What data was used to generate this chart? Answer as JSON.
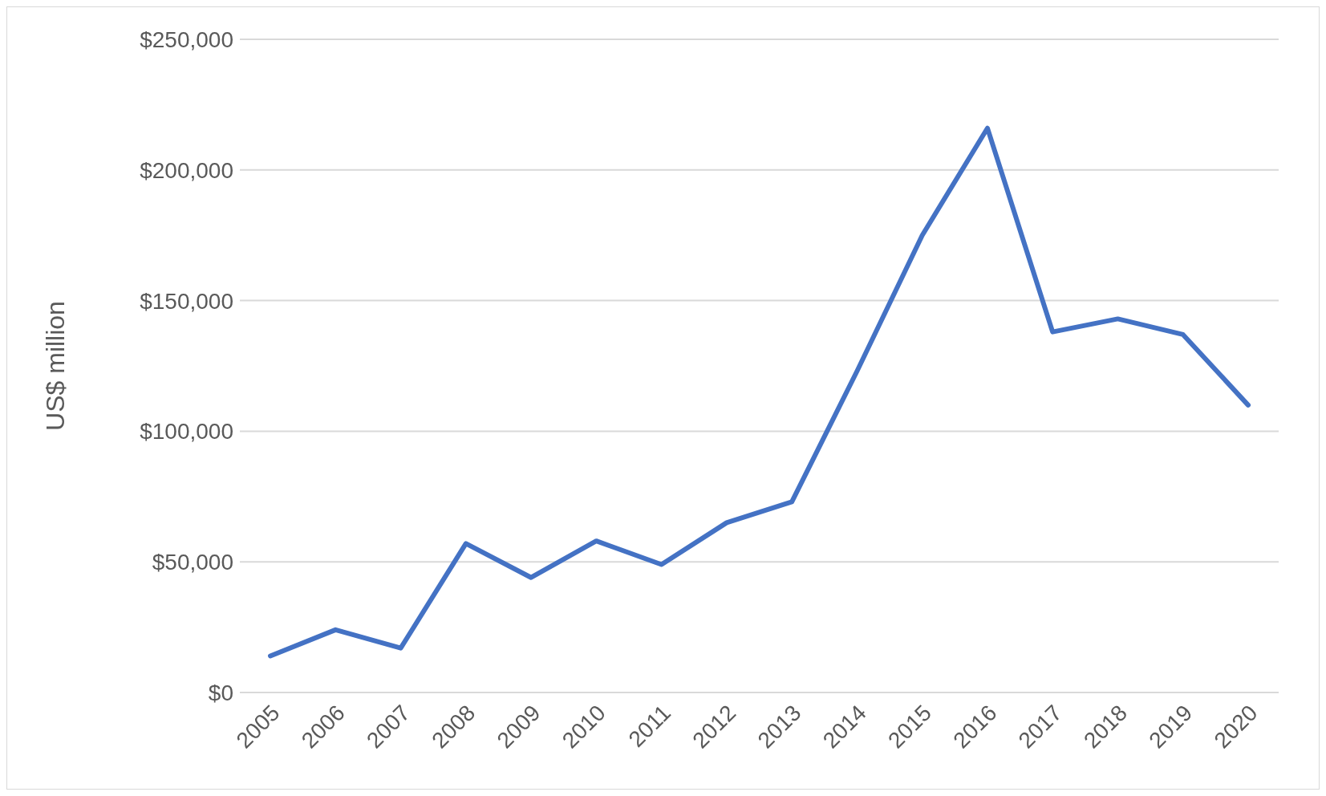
{
  "chart_data": {
    "type": "line",
    "ylabel": "US$ million",
    "categories": [
      "2005",
      "2006",
      "2007",
      "2008",
      "2009",
      "2010",
      "2011",
      "2012",
      "2013",
      "2014",
      "2015",
      "2016",
      "2017",
      "2018",
      "2019",
      "2020"
    ],
    "series": [
      {
        "color": "#4472c4",
        "values": [
          14000,
          24000,
          17000,
          57000,
          44000,
          58000,
          49000,
          65000,
          73000,
          123000,
          175000,
          216000,
          138000,
          143000,
          137000,
          110000
        ]
      }
    ],
    "ylim": [
      0,
      250000
    ],
    "yticks": [
      {
        "value": 0,
        "label": "$0"
      },
      {
        "value": 50000,
        "label": "$50,000"
      },
      {
        "value": 100000,
        "label": "$100,000"
      },
      {
        "value": 150000,
        "label": "$150,000"
      },
      {
        "value": 200000,
        "label": "$200,000"
      },
      {
        "value": 250000,
        "label": "$250,000"
      }
    ],
    "grid": "y",
    "legend": false,
    "marker": "none",
    "line_style": "solid"
  }
}
